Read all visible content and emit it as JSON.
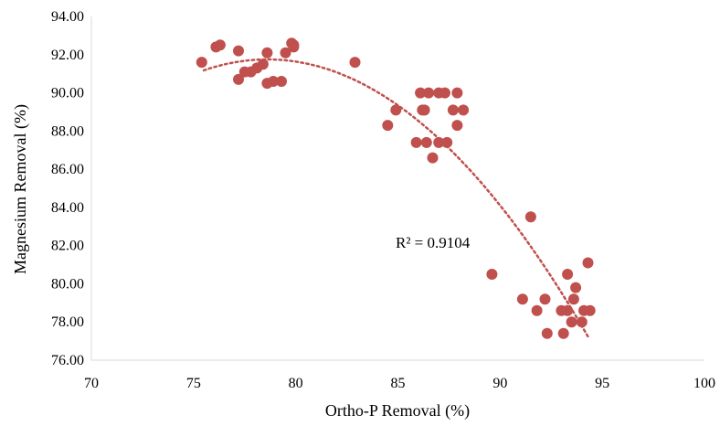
{
  "chart_data": {
    "type": "scatter",
    "xlabel": "Ortho-P Removal (%)",
    "ylabel": "Magnesium Removal (%)",
    "xlim": [
      70,
      100
    ],
    "ylim": [
      76,
      94
    ],
    "xticks": [
      "70",
      "75",
      "80",
      "85",
      "90",
      "95",
      "100"
    ],
    "yticks": [
      "76.00",
      "78.00",
      "80.00",
      "82.00",
      "84.00",
      "86.00",
      "88.00",
      "90.00",
      "92.00",
      "94.00"
    ],
    "grid": false,
    "legend": "none",
    "marker_color": "#c0504d",
    "trendline": {
      "type": "polynomial-2",
      "style": "dotted",
      "color": "#c0504d",
      "x_range": [
        75.5,
        94.3
      ],
      "points": [
        [
          75.5,
          91.1
        ],
        [
          80,
          91.8
        ],
        [
          85,
          89.3
        ],
        [
          90,
          84.0
        ],
        [
          94.3,
          77.3
        ]
      ],
      "label": "R² = 0.9104"
    },
    "points": [
      [
        75.4,
        91.6
      ],
      [
        76.1,
        92.4
      ],
      [
        76.3,
        92.5
      ],
      [
        77.2,
        92.2
      ],
      [
        77.2,
        90.7
      ],
      [
        77.5,
        91.1
      ],
      [
        77.8,
        91.1
      ],
      [
        78.1,
        91.3
      ],
      [
        78.4,
        91.5
      ],
      [
        78.6,
        92.1
      ],
      [
        78.6,
        90.5
      ],
      [
        78.9,
        90.6
      ],
      [
        79.3,
        90.6
      ],
      [
        79.5,
        92.1
      ],
      [
        79.8,
        92.6
      ],
      [
        79.9,
        92.4
      ],
      [
        79.9,
        92.5
      ],
      [
        82.9,
        91.6
      ],
      [
        84.5,
        88.3
      ],
      [
        84.9,
        89.1
      ],
      [
        85.9,
        87.4
      ],
      [
        86.1,
        90.0
      ],
      [
        86.2,
        89.1
      ],
      [
        86.3,
        89.1
      ],
      [
        86.4,
        87.4
      ],
      [
        86.5,
        90.0
      ],
      [
        86.7,
        86.6
      ],
      [
        87.0,
        90.0
      ],
      [
        87.0,
        87.4
      ],
      [
        87.3,
        90.0
      ],
      [
        87.4,
        87.4
      ],
      [
        87.7,
        89.1
      ],
      [
        87.9,
        90.0
      ],
      [
        87.9,
        88.3
      ],
      [
        88.2,
        89.1
      ],
      [
        89.6,
        80.5
      ],
      [
        91.1,
        79.2
      ],
      [
        91.5,
        83.5
      ],
      [
        91.8,
        78.6
      ],
      [
        92.2,
        79.2
      ],
      [
        92.3,
        77.4
      ],
      [
        93.0,
        78.6
      ],
      [
        93.1,
        77.4
      ],
      [
        93.3,
        80.5
      ],
      [
        93.3,
        78.6
      ],
      [
        93.5,
        78.0
      ],
      [
        93.6,
        79.2
      ],
      [
        93.7,
        79.8
      ],
      [
        94.0,
        78.0
      ],
      [
        94.1,
        78.6
      ],
      [
        94.3,
        81.1
      ],
      [
        94.4,
        78.6
      ]
    ]
  }
}
